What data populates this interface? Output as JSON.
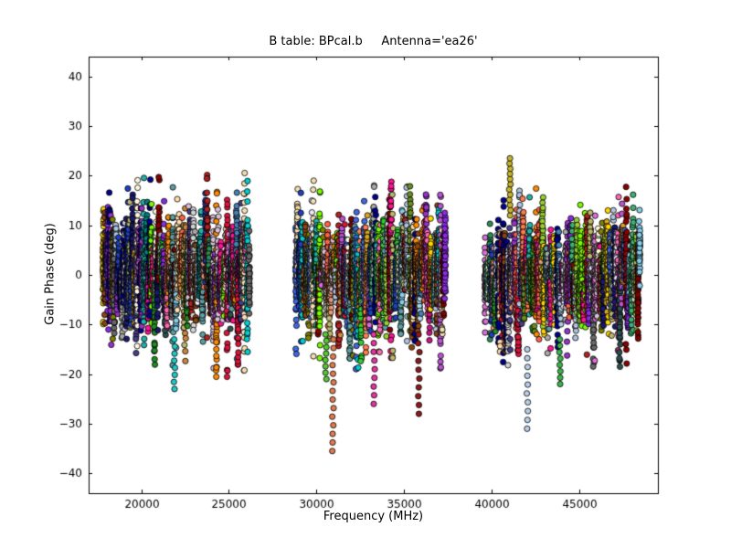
{
  "chart_data": {
    "type": "scatter",
    "title": "B table: BPcal.b     Antenna='ea26'",
    "xlabel": "Frequency (MHz)",
    "ylabel": "Gain Phase (deg)",
    "xlim": [
      17000,
      49500
    ],
    "ylim": [
      -44,
      44
    ],
    "x_ticks": [
      20000,
      25000,
      30000,
      35000,
      40000,
      45000
    ],
    "y_ticks": [
      -40,
      -30,
      -20,
      -10,
      0,
      10,
      20,
      30,
      40
    ],
    "grid": false,
    "legend": "none",
    "background": "#ffffff",
    "axes_color": "#000000",
    "marker": {
      "radius": 3.1,
      "edge_color": "#000000",
      "edge_width": 0.8
    },
    "seed": 20260217,
    "bands": [
      {
        "x_min": 17800,
        "x_max": 26200,
        "n_columns": 95,
        "points_per_column": 48,
        "center_sd": 3.2,
        "col_sd_min": 1.6,
        "col_sd_max": 6.5,
        "y_clip": 21
      },
      {
        "x_min": 28800,
        "x_max": 37400,
        "n_columns": 95,
        "points_per_column": 46,
        "center_sd": 3.0,
        "col_sd_min": 1.5,
        "col_sd_max": 6.0,
        "y_clip": 19
      },
      {
        "x_min": 39600,
        "x_max": 48500,
        "n_columns": 95,
        "points_per_column": 46,
        "center_sd": 3.2,
        "col_sd_min": 1.6,
        "col_sd_max": 6.3,
        "y_clip": 20
      }
    ],
    "outlier_columns": [
      {
        "x": 30950,
        "color": "#e07b4f",
        "y_from": -13,
        "y_to": -35.5,
        "count": 14
      },
      {
        "x": 30550,
        "color": "#55c832",
        "y_from": -12,
        "y_to": -21,
        "count": 8
      },
      {
        "x": 33300,
        "color": "#e832a0",
        "y_from": -12,
        "y_to": -26,
        "count": 9
      },
      {
        "x": 35850,
        "color": "#8b1a1a",
        "y_from": -12,
        "y_to": -28,
        "count": 10
      },
      {
        "x": 21900,
        "color": "#20c8c8",
        "y_from": -13,
        "y_to": -23,
        "count": 8
      },
      {
        "x": 42050,
        "color": "#b8cfe8",
        "y_from": -15,
        "y_to": -31,
        "count": 10
      },
      {
        "x": 41050,
        "color": "#c8b42c",
        "y_from": 12,
        "y_to": 23.5,
        "count": 12
      },
      {
        "x": 43900,
        "color": "#3cb44b",
        "y_from": -13,
        "y_to": -22,
        "count": 8
      }
    ],
    "palette": [
      "#191970",
      "#00008b",
      "#2040c0",
      "#4169e1",
      "#4682b4",
      "#5f9ea0",
      "#87ceeb",
      "#b0c4de",
      "#add8e6",
      "#00ced1",
      "#20b2aa",
      "#008080",
      "#2e8b57",
      "#3cb371",
      "#228b22",
      "#32cd32",
      "#7cfc00",
      "#9acd32",
      "#6b8e23",
      "#bdb76b",
      "#808000",
      "#ffd700",
      "#daa520",
      "#ff8c00",
      "#ff7f50",
      "#ff6347",
      "#e9967a",
      "#dc143c",
      "#b22222",
      "#8b0000",
      "#800000",
      "#c71585",
      "#ff69b4",
      "#ff1493",
      "#da70d6",
      "#ba55d3",
      "#9932cc",
      "#8a2be2",
      "#483d8b",
      "#d8bfd8",
      "#f5deb3",
      "#ffdead",
      "#fff8dc",
      "#d3d3d3",
      "#a9a9a9",
      "#696969",
      "#2f4f4f",
      "#8b4513",
      "#cd853f",
      "#e8e8ff"
    ]
  }
}
